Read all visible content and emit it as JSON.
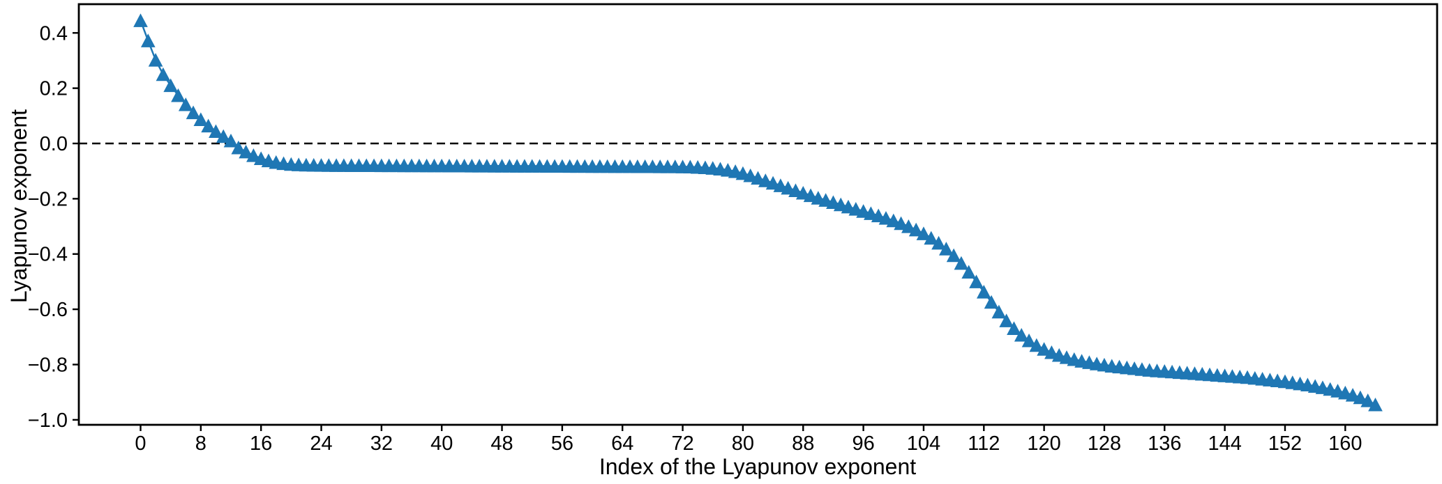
{
  "figure": {
    "background_color": "#ffffff",
    "series_color": "#1f77b4",
    "axis_color": "#000000"
  },
  "chart_data": {
    "type": "line",
    "subtype": "line-with-triangle-up-markers",
    "title": "",
    "xlabel": "Index of the Lyapunov exponent",
    "ylabel": "Lyapunov exponent",
    "legend": null,
    "grid": false,
    "color": "#1f77b4",
    "marker": "triangle-up",
    "zero_line": {
      "y": 0.0,
      "style": "dashed",
      "color": "#000000"
    },
    "xlim": [
      -8.2,
      172.2
    ],
    "ylim": [
      -1.018,
      0.504
    ],
    "x_ticks": [
      0,
      8,
      16,
      24,
      32,
      40,
      48,
      56,
      64,
      72,
      80,
      88,
      96,
      104,
      112,
      120,
      128,
      136,
      144,
      152,
      160
    ],
    "y_ticks": [
      0.4,
      0.2,
      0.0,
      -0.2,
      -0.4,
      -0.6,
      -0.8,
      -1.0
    ],
    "x_start": 0,
    "x_step": 1,
    "n_points": 165,
    "values": [
      0.445,
      0.372,
      0.302,
      0.25,
      0.21,
      0.174,
      0.141,
      0.112,
      0.087,
      0.064,
      0.044,
      0.026,
      0.01,
      -0.015,
      -0.03,
      -0.043,
      -0.054,
      -0.062,
      -0.068,
      -0.072,
      -0.075,
      -0.0765,
      -0.0775,
      -0.078,
      -0.0785,
      -0.0788,
      -0.079,
      -0.0791,
      -0.0792,
      -0.0793,
      -0.0794,
      -0.0795,
      -0.0796,
      -0.0797,
      -0.0798,
      -0.0799,
      -0.08,
      -0.0801,
      -0.0802,
      -0.0803,
      -0.0804,
      -0.0805,
      -0.0806,
      -0.0807,
      -0.0808,
      -0.0809,
      -0.081,
      -0.0811,
      -0.0812,
      -0.0813,
      -0.0814,
      -0.0815,
      -0.0816,
      -0.0817,
      -0.0818,
      -0.0819,
      -0.082,
      -0.0821,
      -0.0822,
      -0.0823,
      -0.0824,
      -0.0825,
      -0.0826,
      -0.0827,
      -0.0828,
      -0.0829,
      -0.083,
      -0.0831,
      -0.0832,
      -0.0833,
      -0.0834,
      -0.0835,
      -0.084,
      -0.0845,
      -0.0855,
      -0.087,
      -0.089,
      -0.092,
      -0.096,
      -0.101,
      -0.108,
      -0.116,
      -0.125,
      -0.134,
      -0.143,
      -0.152,
      -0.161,
      -0.17,
      -0.179,
      -0.188,
      -0.197,
      -0.205,
      -0.213,
      -0.221,
      -0.229,
      -0.237,
      -0.245,
      -0.253,
      -0.261,
      -0.27,
      -0.279,
      -0.289,
      -0.3,
      -0.312,
      -0.326,
      -0.342,
      -0.36,
      -0.381,
      -0.405,
      -0.433,
      -0.465,
      -0.5,
      -0.537,
      -0.574,
      -0.609,
      -0.641,
      -0.669,
      -0.693,
      -0.713,
      -0.73,
      -0.744,
      -0.756,
      -0.766,
      -0.774,
      -0.781,
      -0.787,
      -0.792,
      -0.797,
      -0.801,
      -0.805,
      -0.808,
      -0.811,
      -0.814,
      -0.817,
      -0.82,
      -0.822,
      -0.824,
      -0.826,
      -0.828,
      -0.83,
      -0.832,
      -0.834,
      -0.836,
      -0.838,
      -0.84,
      -0.842,
      -0.844,
      -0.846,
      -0.849,
      -0.852,
      -0.855,
      -0.858,
      -0.861,
      -0.865,
      -0.869,
      -0.873,
      -0.878,
      -0.883,
      -0.889,
      -0.895,
      -0.902,
      -0.91,
      -0.919,
      -0.93,
      -0.945
    ]
  }
}
